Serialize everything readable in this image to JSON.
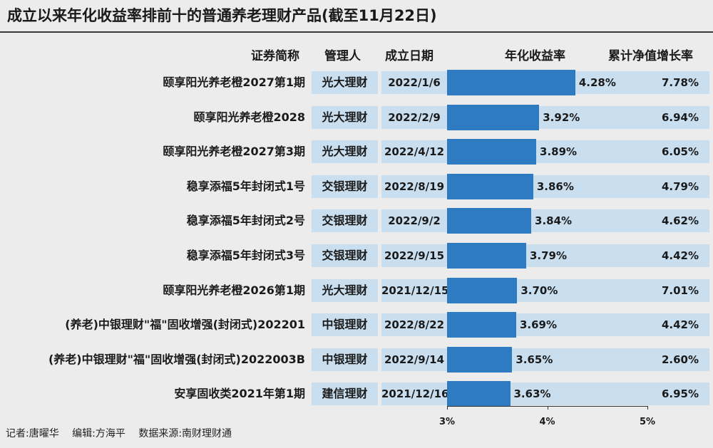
{
  "title": "成立以来年化收益率排前十的普通养老理财产品(截至11月22日)",
  "headers": {
    "name": "证券简称",
    "manager": "管理人",
    "date": "成立日期",
    "rate": "年化收益率",
    "cumulative": "累计净值增长率"
  },
  "chart_data": {
    "type": "bar",
    "orientation": "horizontal",
    "title": "成立以来年化收益率排前十的普通养老理财产品(截至11月22日)",
    "xlabel": "年化收益率",
    "xlim": [
      3,
      5
    ],
    "xticks": [
      "3%",
      "4%",
      "5%"
    ],
    "categories": [
      "颐享阳光养老橙2027第1期",
      "颐享阳光养老橙2028",
      "颐享阳光养老橙2027第3期",
      "稳享添福5年封闭式1号",
      "稳享添福5年封闭式2号",
      "稳享添福5年封闭式3号",
      "颐享阳光养老橙2026第1期",
      "(养老)中银理财\"福\"固收增强(封闭式)202201",
      "(养老)中银理财\"福\"固收增强(封闭式)2022003B",
      "安享固收类2021年第1期"
    ],
    "values": [
      4.28,
      3.92,
      3.89,
      3.86,
      3.84,
      3.79,
      3.7,
      3.69,
      3.65,
      3.63
    ],
    "value_labels": [
      "4.28%",
      "3.92%",
      "3.89%",
      "3.86%",
      "3.84%",
      "3.79%",
      "3.70%",
      "3.69%",
      "3.65%",
      "3.63%"
    ],
    "managers": [
      "光大理财",
      "光大理财",
      "光大理财",
      "交银理财",
      "交银理财",
      "交银理财",
      "光大理财",
      "中银理财",
      "中银理财",
      "建信理财"
    ],
    "dates": [
      "2022/1/6",
      "2022/2/9",
      "2022/4/12",
      "2022/8/19",
      "2022/9/2",
      "2022/9/15",
      "2021/12/15",
      "2022/8/22",
      "2022/9/14",
      "2021/12/16"
    ],
    "cumulative": [
      "7.78%",
      "6.94%",
      "6.05%",
      "4.79%",
      "4.62%",
      "4.42%",
      "7.01%",
      "4.42%",
      "2.60%",
      "6.95%"
    ],
    "bar_color": "#2f7bc2",
    "band_color": "#c9dff0"
  },
  "credits": {
    "reporter": "记者:唐曜华",
    "editor": "编辑:方海平",
    "source": "数据来源:南财理财通"
  }
}
